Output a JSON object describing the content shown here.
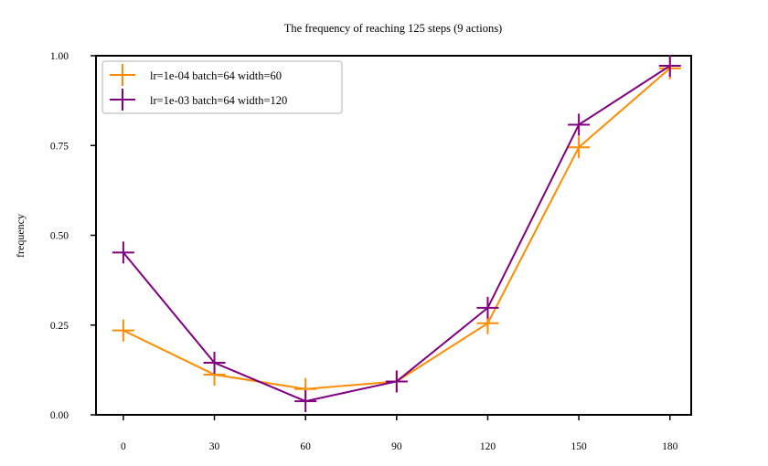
{
  "chart_data": {
    "type": "line",
    "title": "The frequency of reaching 125 steps (9 actions)",
    "xlabel": "",
    "ylabel": "frequency",
    "x": [
      0,
      30,
      60,
      90,
      120,
      150,
      180
    ],
    "xlim": [
      -9,
      187
    ],
    "ylim": [
      0,
      1
    ],
    "xticks": [
      "0",
      "30",
      "60",
      "90",
      "120",
      "150",
      "180"
    ],
    "yticks": [
      "0.00",
      "0.25",
      "0.50",
      "0.75",
      "1.00"
    ],
    "legend_position": "top-left",
    "grid": false,
    "series": [
      {
        "name": "lr=1e-04 batch=64 width=60",
        "color": "#ff8c00",
        "marker": "plus",
        "values": [
          0.235,
          0.112,
          0.072,
          0.093,
          0.255,
          0.745,
          0.965
        ]
      },
      {
        "name": "lr=1e-03 batch=64 width=120",
        "color": "#800080",
        "marker": "plus",
        "values": [
          0.452,
          0.145,
          0.038,
          0.093,
          0.298,
          0.808,
          0.972
        ]
      }
    ]
  }
}
